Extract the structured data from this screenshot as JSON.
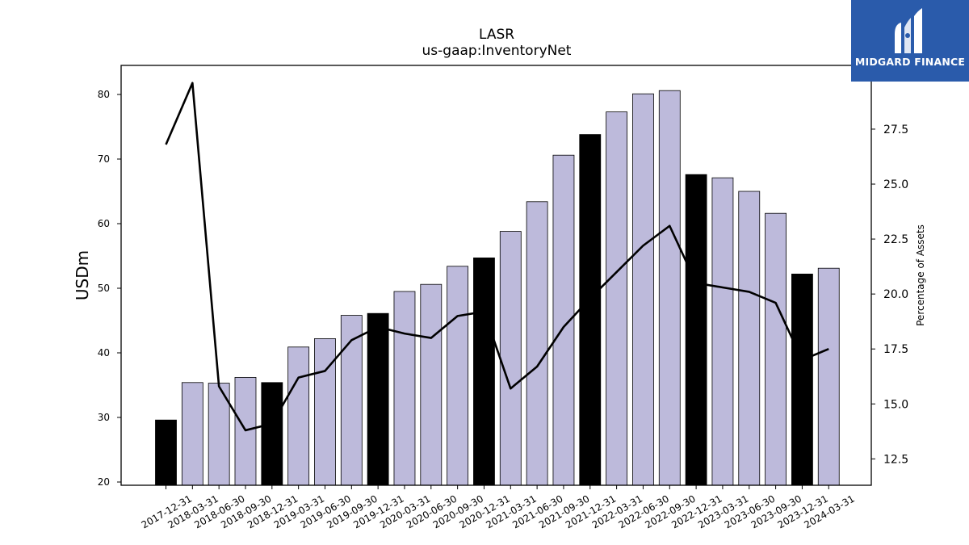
{
  "chart_data": {
    "type": "bar",
    "title": "LASR",
    "subtitle": "us-gaap:InventoryNet",
    "ylabel": "USDm",
    "y2label": "Percentage of Assets",
    "ylim": [
      19.5,
      84.5
    ],
    "y2lim": [
      11.3,
      30.4
    ],
    "yticks": [
      20,
      30,
      40,
      50,
      60,
      70,
      80
    ],
    "y2ticks": [
      "12.5",
      "15.0",
      "17.5",
      "20.0",
      "22.5",
      "25.0",
      "27.5"
    ],
    "categories": [
      "2017-12-31",
      "2018-03-31",
      "2018-06-30",
      "2018-09-30",
      "2018-12-31",
      "2019-03-31",
      "2019-06-30",
      "2019-09-30",
      "2019-12-31",
      "2020-03-31",
      "2020-06-30",
      "2020-09-30",
      "2020-12-31",
      "2021-03-31",
      "2021-06-30",
      "2021-09-30",
      "2021-12-31",
      "2022-03-31",
      "2022-06-30",
      "2022-09-30",
      "2022-12-31",
      "2023-03-31",
      "2023-06-30",
      "2023-09-30",
      "2023-12-31",
      "2024-03-31"
    ],
    "series": [
      {
        "type": "bar",
        "axis": "left",
        "values": [
          29.6,
          35.4,
          35.3,
          36.2,
          35.4,
          40.9,
          42.2,
          45.8,
          46.1,
          49.5,
          50.6,
          53.4,
          54.7,
          58.8,
          63.4,
          70.6,
          73.8,
          77.3,
          80.1,
          80.6,
          67.6,
          67.1,
          65.0,
          61.6,
          52.2,
          53.1
        ],
        "highlight": [
          true,
          false,
          false,
          false,
          true,
          false,
          false,
          false,
          true,
          false,
          false,
          false,
          true,
          false,
          false,
          false,
          true,
          false,
          false,
          false,
          true,
          false,
          false,
          false,
          true,
          false
        ]
      },
      {
        "type": "line",
        "axis": "right",
        "values": [
          26.8,
          29.6,
          15.8,
          13.8,
          14.1,
          16.2,
          16.5,
          17.9,
          18.5,
          18.2,
          18.0,
          19.0,
          19.2,
          15.7,
          16.7,
          18.5,
          19.8,
          21.0,
          22.2,
          23.1,
          20.5,
          20.3,
          20.1,
          19.6,
          17.0,
          17.5
        ]
      }
    ],
    "colors": {
      "bar": "#bdbadb",
      "bar_highlight": "#000000",
      "line": "#000000"
    },
    "grid": false,
    "legend": "none"
  },
  "logo": {
    "text": "MIDGARD FINANCE",
    "background": "#2a5bab"
  }
}
